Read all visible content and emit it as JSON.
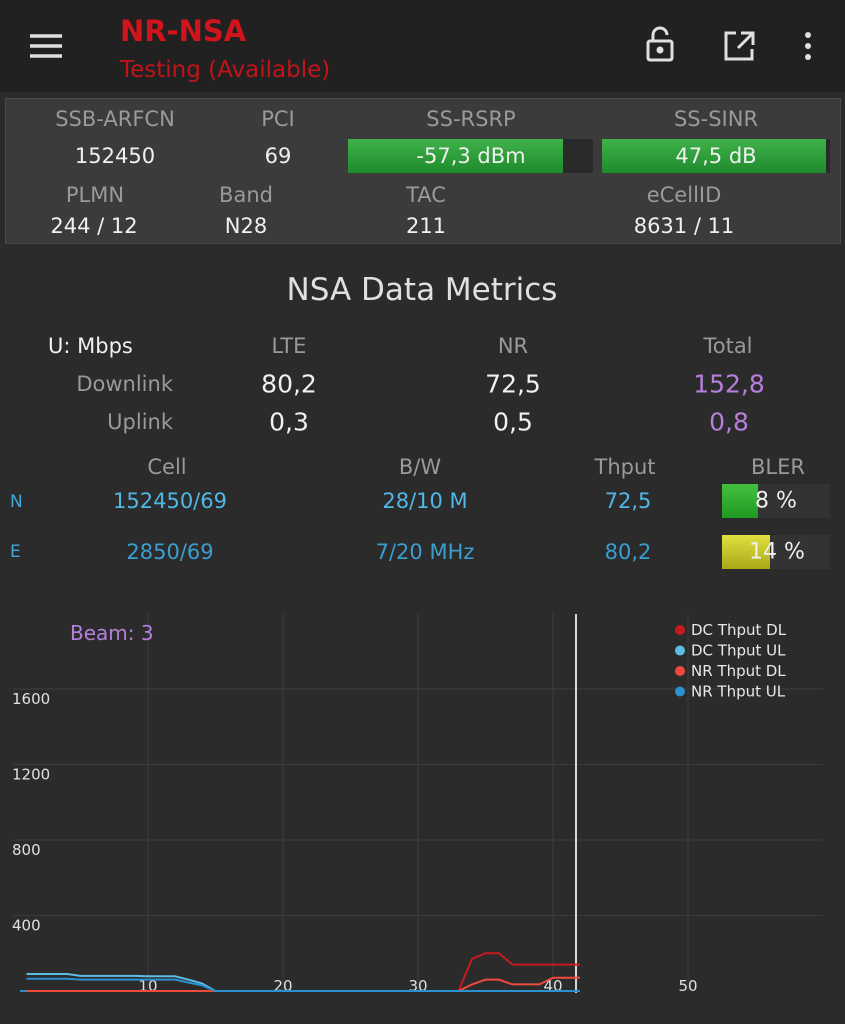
{
  "app_bar": {
    "title": "NR-NSA",
    "subtitle": "Testing (Available)"
  },
  "cell_info": {
    "labels_row1": [
      "SSB-ARFCN",
      "PCI",
      "SS-RSRP",
      "SS-SINR"
    ],
    "values_row1": [
      "152450",
      "69",
      "-57,3 dBm",
      "47,5 dB"
    ],
    "labels_row2": [
      "PLMN",
      "Band",
      "TAC",
      "eCellID"
    ],
    "values_row2": [
      "244 / 12",
      "N28",
      "211",
      "8631 / 11"
    ]
  },
  "metrics": {
    "title": "NSA Data Metrics",
    "header": [
      "U: Mbps",
      "LTE",
      "NR",
      "Total"
    ],
    "rows": [
      [
        "Downlink",
        "80,2",
        "72,5",
        "152,8"
      ],
      [
        "Uplink",
        "0,3",
        "0,5",
        "0,8"
      ]
    ]
  },
  "carriers": {
    "header": [
      "Cell",
      "B/W",
      "Thput",
      "BLER"
    ],
    "rows": [
      [
        "N",
        "152450/69",
        "28/10 M",
        "72,5",
        "8 %"
      ],
      [
        "E",
        "2850/69",
        "7/20 MHz",
        "80,2",
        "14 %"
      ]
    ]
  },
  "chart_data": {
    "type": "line",
    "annotation": "Beam: 3",
    "x": [
      1,
      2,
      3,
      4,
      5,
      6,
      7,
      8,
      9,
      10,
      11,
      12,
      13,
      14,
      15,
      16,
      17,
      18,
      19,
      20,
      21,
      22,
      23,
      24,
      25,
      26,
      27,
      28,
      29,
      30,
      31,
      32,
      33,
      34,
      35,
      36,
      37,
      38,
      39,
      40,
      41,
      42
    ],
    "xlim": [
      0,
      60
    ],
    "xticks": [
      10,
      20,
      30,
      40,
      50
    ],
    "ylim": [
      0,
      2000
    ],
    "yticks": [
      400,
      800,
      1200,
      1600
    ],
    "grid": true,
    "legend": "top-right",
    "series": [
      {
        "name": "DC Thput DL",
        "color": "#c81a1e",
        "values": [
          0,
          0,
          0,
          0,
          0,
          0,
          0,
          0,
          0,
          0,
          0,
          0,
          0,
          0,
          0,
          0,
          0,
          0,
          0,
          0,
          0,
          0,
          0,
          0,
          0,
          0,
          0,
          0,
          0,
          0,
          0,
          0,
          0,
          170,
          200,
          200,
          140,
          140,
          140,
          140,
          140,
          140
        ]
      },
      {
        "name": "DC Thput UL",
        "color": "#5bbde6",
        "values": [
          90,
          90,
          90,
          90,
          80,
          80,
          80,
          80,
          80,
          78,
          78,
          78,
          60,
          40,
          0,
          0,
          0,
          0,
          0,
          0,
          0,
          0,
          0,
          0,
          0,
          0,
          0,
          0,
          0,
          0,
          0,
          0,
          0,
          0,
          0,
          0,
          0,
          0,
          0,
          0,
          0,
          0
        ]
      },
      {
        "name": "NR Thput DL",
        "color": "#ee4a3e",
        "values": [
          0,
          0,
          0,
          0,
          0,
          0,
          0,
          0,
          0,
          0,
          0,
          0,
          0,
          0,
          0,
          0,
          0,
          0,
          0,
          0,
          0,
          0,
          0,
          0,
          0,
          0,
          0,
          0,
          0,
          0,
          0,
          0,
          0,
          35,
          60,
          60,
          35,
          35,
          35,
          70,
          70,
          70
        ]
      },
      {
        "name": "NR Thput UL",
        "color": "#2a90d0",
        "values": [
          65,
          65,
          65,
          65,
          60,
          60,
          60,
          60,
          60,
          60,
          60,
          60,
          45,
          30,
          0,
          0,
          0,
          0,
          0,
          0,
          0,
          0,
          0,
          0,
          0,
          0,
          0,
          0,
          0,
          0,
          0,
          0,
          0,
          0,
          0,
          0,
          0,
          0,
          0,
          0,
          0,
          0
        ]
      }
    ]
  }
}
